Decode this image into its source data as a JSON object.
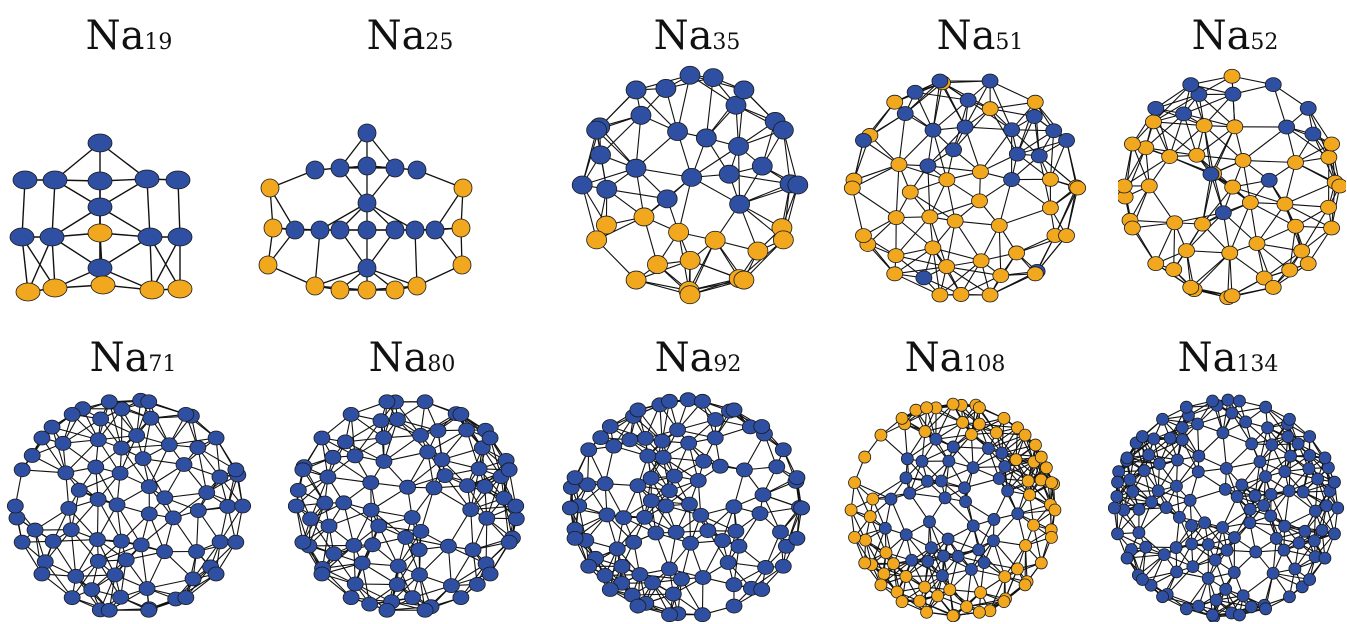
{
  "atom_colors": {
    "surface": "#2f4fa2",
    "inner": "#f1a81f",
    "bond": "#111111"
  },
  "clusters": [
    {
      "id": "na19",
      "element": "Na",
      "size": "19",
      "icon": "cluster-structure-icon"
    },
    {
      "id": "na25",
      "element": "Na",
      "size": "25",
      "icon": "cluster-structure-icon"
    },
    {
      "id": "na35",
      "element": "Na",
      "size": "35",
      "icon": "cluster-structure-icon"
    },
    {
      "id": "na51",
      "element": "Na",
      "size": "51",
      "icon": "cluster-structure-icon"
    },
    {
      "id": "na52",
      "element": "Na",
      "size": "52",
      "icon": "cluster-structure-icon"
    },
    {
      "id": "na71",
      "element": "Na",
      "size": "71",
      "icon": "cluster-structure-icon"
    },
    {
      "id": "na80",
      "element": "Na",
      "size": "80",
      "icon": "cluster-structure-icon"
    },
    {
      "id": "na92",
      "element": "Na",
      "size": "92",
      "icon": "cluster-structure-icon"
    },
    {
      "id": "na108",
      "element": "Na",
      "size": "108",
      "icon": "cluster-structure-icon"
    },
    {
      "id": "na134",
      "element": "Na",
      "size": "134",
      "icon": "cluster-structure-icon"
    }
  ]
}
